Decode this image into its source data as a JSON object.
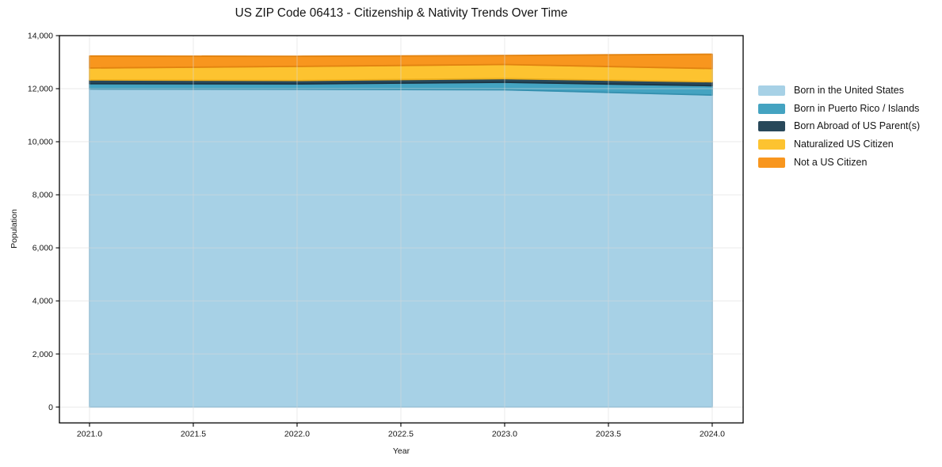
{
  "figure": {
    "title": "US ZIP Code 06413 - Citizenship & Nativity Trends Over Time"
  },
  "chart_data": {
    "type": "area",
    "stacked": true,
    "title": "US ZIP Code 06413 - Citizenship & Nativity Trends Over Time",
    "xlabel": "Year",
    "ylabel": "Population",
    "x": [
      2021,
      2022,
      2023,
      2024
    ],
    "xlim": [
      2020.855,
      2024.149
    ],
    "ylim": [
      -600,
      14000
    ],
    "xticks": [
      2021.0,
      2021.5,
      2022.0,
      2022.5,
      2023.0,
      2023.5,
      2024.0
    ],
    "xtick_labels": [
      "2021.0",
      "2021.5",
      "2022.0",
      "2022.5",
      "2023.0",
      "2023.5",
      "2024.0"
    ],
    "yticks": [
      0,
      2000,
      4000,
      6000,
      8000,
      10000,
      12000,
      14000
    ],
    "ytick_labels": [
      "0",
      "2,000",
      "4,000",
      "6,000",
      "8,000",
      "10,000",
      "12,000",
      "14,000"
    ],
    "grid": true,
    "legend_position": "right-outside",
    "series": [
      {
        "name": "Born in the United States",
        "color": "#a7d1e6",
        "edge": "#8cc0db",
        "values": [
          11990,
          11980,
          11960,
          11760
        ]
      },
      {
        "name": "Born in Puerto Rico / Islands",
        "color": "#44a3c1",
        "edge": "#338fae",
        "values": [
          200,
          200,
          280,
          350
        ]
      },
      {
        "name": "Born Abroad of US Parent(s)",
        "color": "#28485a",
        "edge": "#1b3544",
        "values": [
          140,
          130,
          140,
          150
        ]
      },
      {
        "name": "Naturalized US Citizen",
        "color": "#fdc330",
        "edge": "#eeb01d",
        "values": [
          450,
          530,
          530,
          500
        ]
      },
      {
        "name": "Not a US Citizen",
        "color": "#f8961e",
        "edge": "#e28310",
        "values": [
          450,
          380,
          340,
          540
        ]
      }
    ],
    "totals": [
      13230,
      13220,
      13250,
      13300
    ],
    "colors": {
      "frame": "#000000",
      "gridline": "#d9d9d9",
      "background": "#ffffff",
      "text": "#141414"
    }
  }
}
